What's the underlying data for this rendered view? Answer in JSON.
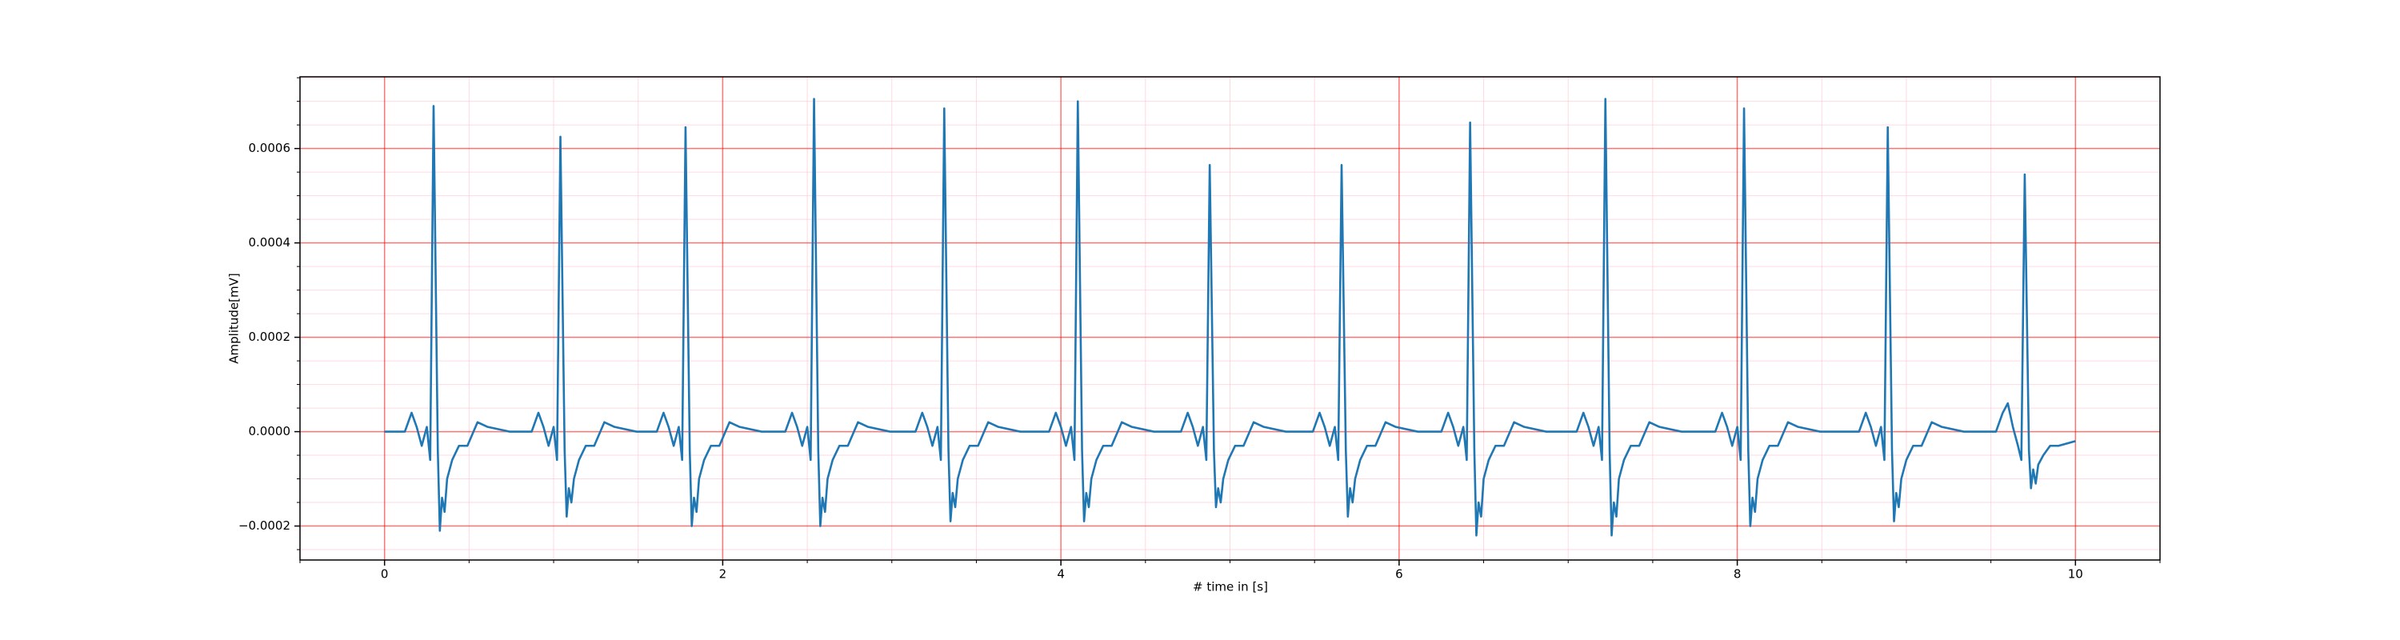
{
  "chart_data": {
    "type": "line",
    "xlabel": "# time in [s]",
    "ylabel": "Amplitude[mV]",
    "color": "#1f77b4",
    "grid": true,
    "minor_grid": true,
    "xlim": [
      -0.5,
      10.5
    ],
    "ylim": [
      -0.000272,
      0.000752
    ],
    "xticks": [
      0,
      2,
      4,
      6,
      8,
      10
    ],
    "yticks": [
      {
        "value": -0.0002,
        "label": "−0.0002"
      },
      {
        "value": 0,
        "label": "0.0000"
      },
      0.0002,
      0.0004,
      0.0006
    ],
    "x": [
      0,
      0.12,
      0.16,
      0.19,
      0.22,
      0.25,
      0.27,
      0.29,
      0.315,
      0.327,
      0.34,
      0.355,
      0.37,
      0.4,
      0.44,
      0.49,
      0.55,
      0.61,
      0.74,
      0.87,
      0.91,
      0.94,
      0.97,
      1.0,
      1.02,
      1.04,
      1.065,
      1.077,
      1.09,
      1.105,
      1.12,
      1.15,
      1.19,
      1.24,
      1.3,
      1.36,
      1.49,
      1.61,
      1.65,
      1.68,
      1.71,
      1.74,
      1.76,
      1.78,
      1.805,
      1.817,
      1.83,
      1.845,
      1.86,
      1.89,
      1.93,
      1.98,
      2.04,
      2.1,
      2.23,
      2.37,
      2.41,
      2.44,
      2.47,
      2.5,
      2.52,
      2.54,
      2.565,
      2.577,
      2.59,
      2.605,
      2.62,
      2.65,
      2.69,
      2.74,
      2.8,
      2.86,
      2.99,
      3.14,
      3.18,
      3.21,
      3.24,
      3.27,
      3.29,
      3.31,
      3.335,
      3.347,
      3.36,
      3.375,
      3.39,
      3.42,
      3.46,
      3.51,
      3.57,
      3.63,
      3.76,
      3.93,
      3.97,
      4.0,
      4.03,
      4.06,
      4.08,
      4.1,
      4.125,
      4.137,
      4.15,
      4.165,
      4.18,
      4.21,
      4.25,
      4.3,
      4.36,
      4.42,
      4.55,
      4.71,
      4.75,
      4.78,
      4.81,
      4.84,
      4.86,
      4.88,
      4.905,
      4.917,
      4.93,
      4.945,
      4.96,
      4.99,
      5.03,
      5.08,
      5.14,
      5.2,
      5.33,
      5.49,
      5.53,
      5.56,
      5.59,
      5.62,
      5.64,
      5.66,
      5.685,
      5.697,
      5.71,
      5.725,
      5.74,
      5.77,
      5.81,
      5.86,
      5.92,
      5.98,
      6.11,
      6.25,
      6.29,
      6.32,
      6.35,
      6.38,
      6.4,
      6.42,
      6.445,
      6.457,
      6.47,
      6.485,
      6.5,
      6.53,
      6.57,
      6.62,
      6.68,
      6.74,
      6.87,
      7.05,
      7.09,
      7.12,
      7.15,
      7.18,
      7.2,
      7.22,
      7.245,
      7.257,
      7.27,
      7.285,
      7.3,
      7.33,
      7.37,
      7.42,
      7.48,
      7.54,
      7.67,
      7.87,
      7.91,
      7.94,
      7.97,
      8.0,
      8.02,
      8.04,
      8.065,
      8.077,
      8.09,
      8.105,
      8.12,
      8.15,
      8.19,
      8.24,
      8.3,
      8.36,
      8.49,
      8.72,
      8.76,
      8.79,
      8.82,
      8.85,
      8.87,
      8.89,
      8.915,
      8.927,
      8.94,
      8.955,
      8.97,
      9.0,
      9.04,
      9.09,
      9.15,
      9.21,
      9.34,
      9.53,
      9.57,
      9.6,
      9.63,
      9.66,
      9.68,
      9.7,
      9.725,
      9.737,
      9.75,
      9.765,
      9.78,
      9.81,
      9.85,
      9.9,
      10.0
    ],
    "values": [
      0,
      0,
      4e-05,
      1e-05,
      -3e-05,
      1e-05,
      -6e-05,
      0.00069,
      -4e-05,
      -0.00021,
      -0.00014,
      -0.00017,
      -0.0001,
      -6e-05,
      -3e-05,
      -3e-05,
      2e-05,
      1e-05,
      0,
      0,
      4e-05,
      1e-05,
      -3e-05,
      1e-05,
      -6e-05,
      0.000625,
      -4e-05,
      -0.00018,
      -0.00012,
      -0.00015,
      -0.0001,
      -6e-05,
      -3e-05,
      -3e-05,
      2e-05,
      1e-05,
      0,
      0,
      4e-05,
      1e-05,
      -3e-05,
      1e-05,
      -6e-05,
      0.000645,
      -4e-05,
      -0.0002,
      -0.00014,
      -0.00017,
      -0.0001,
      -6e-05,
      -3e-05,
      -3e-05,
      2e-05,
      1e-05,
      0,
      0,
      4e-05,
      1e-05,
      -3e-05,
      1e-05,
      -6e-05,
      0.000705,
      -4e-05,
      -0.0002,
      -0.00014,
      -0.00017,
      -0.0001,
      -6e-05,
      -3e-05,
      -3e-05,
      2e-05,
      1e-05,
      0,
      0,
      4e-05,
      1e-05,
      -3e-05,
      1e-05,
      -6e-05,
      0.000685,
      -4e-05,
      -0.00019,
      -0.00013,
      -0.00016,
      -0.0001,
      -6e-05,
      -3e-05,
      -3e-05,
      2e-05,
      1e-05,
      0,
      0,
      4e-05,
      1e-05,
      -3e-05,
      1e-05,
      -6e-05,
      0.0007,
      -4e-05,
      -0.00019,
      -0.00013,
      -0.00016,
      -0.0001,
      -6e-05,
      -3e-05,
      -3e-05,
      2e-05,
      1e-05,
      0,
      0,
      4e-05,
      1e-05,
      -3e-05,
      1e-05,
      -6e-05,
      0.000565,
      -4e-05,
      -0.00016,
      -0.00012,
      -0.00015,
      -0.0001,
      -6e-05,
      -3e-05,
      -3e-05,
      2e-05,
      1e-05,
      0,
      0,
      4e-05,
      1e-05,
      -3e-05,
      1e-05,
      -6e-05,
      0.000565,
      -4e-05,
      -0.00018,
      -0.00012,
      -0.00015,
      -0.0001,
      -6e-05,
      -3e-05,
      -3e-05,
      2e-05,
      1e-05,
      0,
      0,
      4e-05,
      1e-05,
      -3e-05,
      1e-05,
      -6e-05,
      0.000655,
      -4e-05,
      -0.00022,
      -0.00015,
      -0.00018,
      -0.0001,
      -6e-05,
      -3e-05,
      -3e-05,
      2e-05,
      1e-05,
      0,
      0,
      4e-05,
      1e-05,
      -3e-05,
      1e-05,
      -6e-05,
      0.000705,
      -4e-05,
      -0.00022,
      -0.00015,
      -0.00018,
      -0.0001,
      -6e-05,
      -3e-05,
      -3e-05,
      2e-05,
      1e-05,
      0,
      0,
      4e-05,
      1e-05,
      -3e-05,
      1e-05,
      -6e-05,
      0.000685,
      -4e-05,
      -0.0002,
      -0.00014,
      -0.00017,
      -0.0001,
      -6e-05,
      -3e-05,
      -3e-05,
      2e-05,
      1e-05,
      0,
      0,
      4e-05,
      1e-05,
      -3e-05,
      1e-05,
      -6e-05,
      0.000645,
      -4e-05,
      -0.00019,
      -0.00013,
      -0.00016,
      -0.0001,
      -6e-05,
      -3e-05,
      -3e-05,
      2e-05,
      1e-05,
      0,
      0,
      4e-05,
      6e-05,
      1e-05,
      -3e-05,
      -6e-05,
      0.000545,
      -4e-05,
      -0.00012,
      -8e-05,
      -0.00011,
      -7e-05,
      -5e-05,
      -3e-05,
      -3e-05,
      -2e-05
    ]
  }
}
